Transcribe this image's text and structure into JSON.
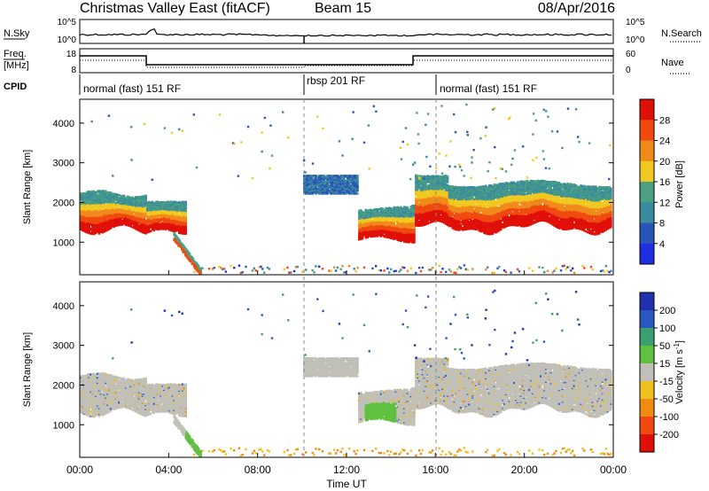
{
  "header": {
    "site": "Christmas Valley East (fitACF)",
    "beam": "Beam 15",
    "date": "08/Apr/2016"
  },
  "summary_panels": {
    "nsky": {
      "left_label": "N.Sky",
      "right_label": "N.Search",
      "left_ticks": [
        "10^5",
        "10^0"
      ],
      "right_ticks": [
        "10^5",
        "10^0"
      ]
    },
    "freq": {
      "left_label_lines": [
        "Freq.",
        "[MHz]"
      ],
      "right_label": "Nave",
      "left_ticks": [
        "18",
        "8"
      ],
      "right_ticks": [
        "60",
        "0"
      ]
    },
    "cpid": {
      "label": "CPID",
      "segments": [
        {
          "start_h": 0,
          "end_h": 10,
          "text": "normal (fast) 151 RF"
        },
        {
          "start_h": 10,
          "end_h": 16,
          "text": "rbsp 201 RF"
        },
        {
          "start_h": 16,
          "end_h": 24,
          "text": "normal (fast) 151 RF"
        }
      ]
    }
  },
  "chart_data": [
    {
      "type": "heatmap",
      "quantity": "Power",
      "ylabel": "Slant Range [km]",
      "xlabel": "",
      "xlim": [
        0,
        24
      ],
      "ylim": [
        180,
        4600
      ],
      "yticks": [
        1000,
        2000,
        3000,
        4000
      ],
      "colorbar": {
        "label": "Power [dB]",
        "ticks": [
          "4",
          "8",
          "12",
          "16",
          "20",
          "24",
          "28"
        ],
        "colors": [
          "#1f2fe0",
          "#2a55b8",
          "#3a8aa0",
          "#4aa080",
          "#f0c820",
          "#f08a1a",
          "#f04a10",
          "#e01008"
        ]
      },
      "echo_regions": [
        {
          "t_start": 0.0,
          "t_end": 3.0,
          "r_low": 1200,
          "r_high": 2400
        },
        {
          "t_start": 3.0,
          "t_end": 4.8,
          "r_low": 1150,
          "r_high": 2200
        },
        {
          "t_start": 4.2,
          "t_end": 5.4,
          "r_low": 300,
          "r_high": 1200
        },
        {
          "t_start": 10.0,
          "t_end": 11.5,
          "r_low": 2200,
          "r_high": 2800
        },
        {
          "t_start": 12.5,
          "t_end": 15.0,
          "r_low": 1000,
          "r_high": 2000
        },
        {
          "t_start": 15.0,
          "t_end": 24.0,
          "r_low": 1200,
          "r_high": 2700
        }
      ]
    },
    {
      "type": "heatmap",
      "quantity": "Velocity",
      "ylabel": "Slant Range [km]",
      "xlabel": "Time UT",
      "xlim": [
        0,
        24
      ],
      "ylim": [
        180,
        4600
      ],
      "yticks": [
        1000,
        2000,
        3000,
        4000
      ],
      "xticks": [
        "00:00",
        "04:00",
        "08:00",
        "12:00",
        "16:00",
        "20:00",
        "00:00"
      ],
      "colorbar": {
        "label_main": "Velocity [m s",
        "label_sup": "-1",
        "label_end": "]",
        "ticks": [
          "200",
          "100",
          "50",
          "15",
          "-15",
          "-50",
          "-100",
          "-200"
        ],
        "colors": [
          "#2030b0",
          "#2a58c0",
          "#3aa070",
          "#60c040",
          "#c0c0b8",
          "#f0c020",
          "#f08a10",
          "#f04a10",
          "#e01008"
        ]
      }
    }
  ]
}
